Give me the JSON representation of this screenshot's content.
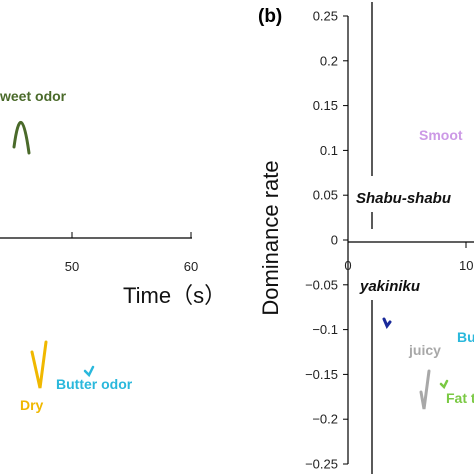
{
  "colors": {
    "sweet_odor": "#4a6a2a",
    "butter_odor": "#2ab8dc",
    "dry": "#f0b800",
    "smooth": "#cc99e6",
    "juicy": "#a8a8a8",
    "butter_b": "#2ab8dc",
    "fat": "#7ac943",
    "dark_blue": "#1a2a9a",
    "axis": "#000000"
  },
  "chart_data": [
    {
      "type": "line",
      "panel": "a",
      "xlabel": "Time（s）",
      "x_ticks": [
        "50",
        "60"
      ],
      "x_tick_values": [
        50,
        60
      ],
      "annotations": {
        "sweet_odor": "weet odor",
        "butter_odor": "Butter odor",
        "dry": "Dry"
      }
    },
    {
      "type": "line",
      "panel": "b",
      "panel_tag": "(b)",
      "ylabel": "Dominance rate",
      "ylim": [
        -0.25,
        0.25
      ],
      "y_ticks": [
        "0.25",
        "0.2",
        "0.15",
        "0.1",
        "0.05",
        "0",
        "−0.05",
        "−0.1",
        "−0.15",
        "−0.2",
        "−0.25"
      ],
      "y_tick_values": [
        0.25,
        0.2,
        0.15,
        0.1,
        0.05,
        0,
        -0.05,
        -0.1,
        -0.15,
        -0.2,
        -0.25
      ],
      "x_ticks": [
        "0",
        "10"
      ],
      "x_tick_values": [
        0,
        10
      ],
      "food_labels": {
        "shabu": "Shabu-shabu",
        "yakiniku": "yakiniku"
      },
      "annotations": {
        "smooth": "Smoot",
        "juicy": "juicy",
        "butter": "Bu",
        "fat": "Fat t"
      }
    }
  ]
}
